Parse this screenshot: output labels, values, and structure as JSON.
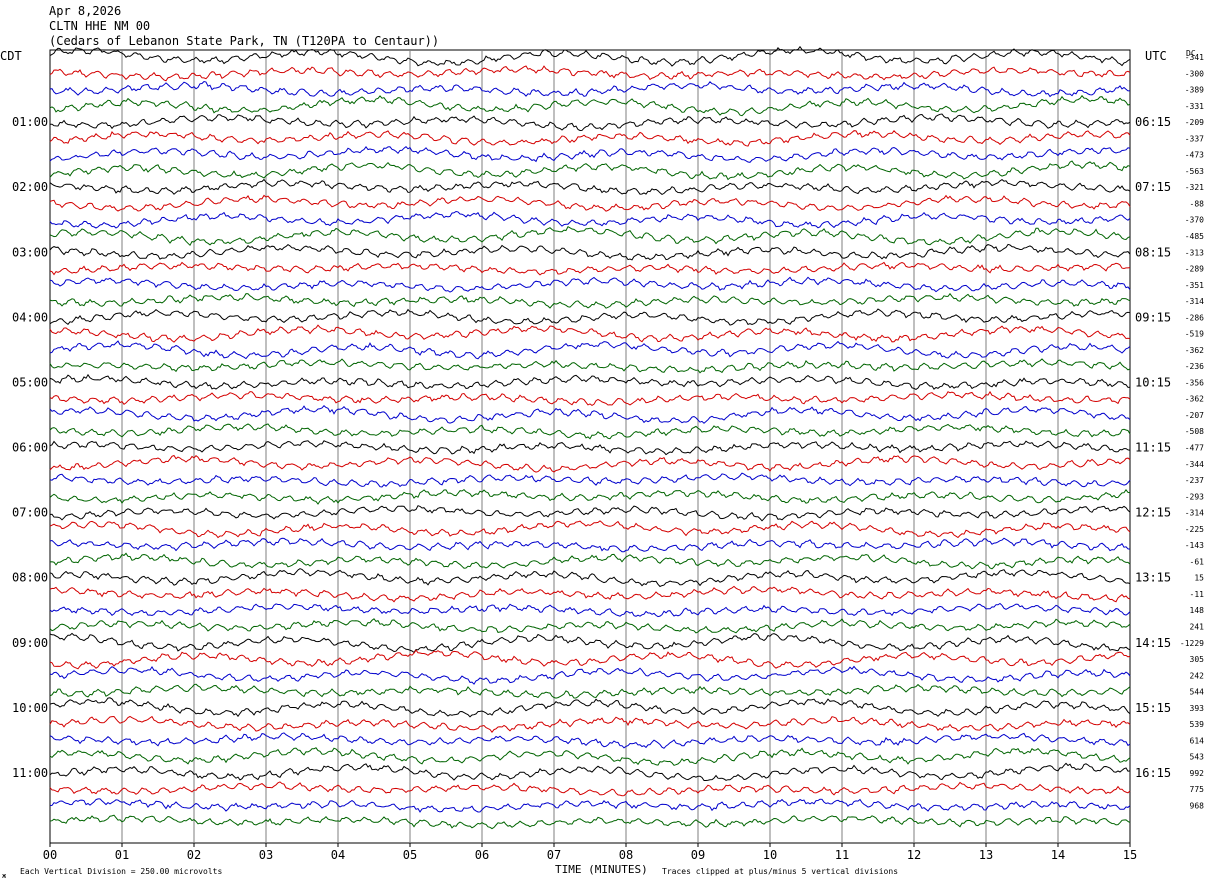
{
  "header": {
    "date": "Apr 8,2026",
    "station": "CLTN HHE NM 00",
    "location": "(Cedars of Lebanon State Park, TN (T120PA to Centaur))"
  },
  "axes": {
    "left_zone": "CDT",
    "right_zone": "UTC",
    "dc_header": "DC",
    "x_title": "TIME (MINUTES)"
  },
  "footer": {
    "left": "Each Vertical Division =  250.00 microvolts",
    "right": "Traces clipped at plus/minus 5 vertical divisions",
    "mark": "ж"
  },
  "colors": {
    "black": "#000000",
    "red": "#d40000",
    "blue": "#0000cc",
    "green": "#006400",
    "grid": "#7f7f7f"
  },
  "chart_data": {
    "type": "helicorder",
    "xlim": [
      0,
      15
    ],
    "x_ticks": [
      "00",
      "01",
      "02",
      "03",
      "04",
      "05",
      "06",
      "07",
      "08",
      "09",
      "10",
      "11",
      "12",
      "13",
      "14",
      "15"
    ],
    "trace_minutes": 15,
    "trace_count": 48,
    "color_cycle": [
      "black",
      "red",
      "blue",
      "green"
    ],
    "left_hour_labels": [
      "01:00",
      "02:00",
      "03:00",
      "04:00",
      "05:00",
      "06:00",
      "07:00",
      "08:00",
      "09:00",
      "10:00",
      "11:00"
    ],
    "right_hour_labels": [
      "06:15",
      "07:15",
      "08:15",
      "09:15",
      "10:15",
      "11:15",
      "12:15",
      "13:15",
      "14:15",
      "15:15",
      "16:15"
    ],
    "dc_offsets": [
      "-341",
      "-300",
      "-389",
      "-331",
      "-209",
      "-337",
      "-473",
      "-563",
      "-321",
      "-88",
      "-370",
      "-485",
      "-313",
      "-289",
      "-351",
      "-314",
      "-286",
      "-519",
      "-362",
      "-236",
      "-356",
      "-362",
      "-207",
      "-508",
      "-477",
      "-344",
      "-237",
      "-293",
      "-314",
      "-225",
      "-143",
      "-61",
      "15",
      "-11",
      "148",
      "241",
      "-1229",
      "305",
      "242",
      "544",
      "393",
      "539",
      "614",
      "543",
      "992",
      "775",
      "968"
    ]
  }
}
